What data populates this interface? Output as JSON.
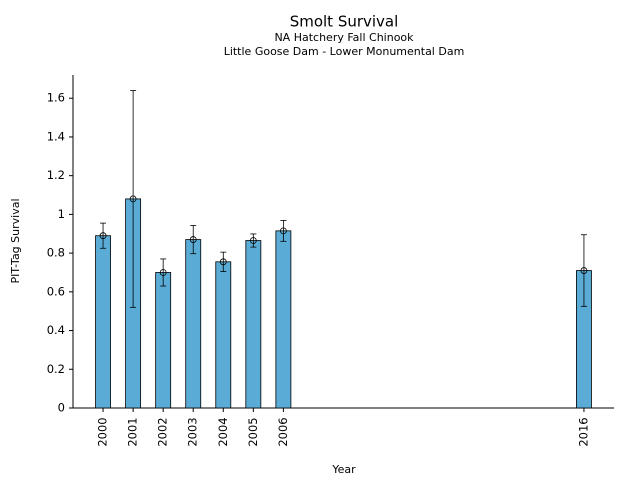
{
  "chart_data": {
    "type": "bar",
    "title": "Smolt Survival",
    "subtitle": "NA Hatchery Fall Chinook",
    "subtitle2": "Little Goose Dam - Lower Monumental Dam",
    "xlabel": "Year",
    "ylabel": "PIT-Tag Survival",
    "x": [
      2000,
      2001,
      2002,
      2003,
      2004,
      2005,
      2006,
      2016
    ],
    "values": [
      0.89,
      1.08,
      0.7,
      0.87,
      0.755,
      0.865,
      0.915,
      0.71
    ],
    "errors": [
      0.065,
      0.56,
      0.07,
      0.073,
      0.05,
      0.034,
      0.054,
      0.185
    ],
    "color": "#5aacd6",
    "xlim": [
      1999,
      2017
    ],
    "xticks": [
      2000,
      2001,
      2002,
      2003,
      2004,
      2005,
      2006,
      2016
    ],
    "ylim": [
      0,
      1.72
    ],
    "yticks": [
      0,
      0.2,
      0.4,
      0.6,
      0.8,
      1,
      1.2,
      1.4,
      1.6
    ]
  }
}
